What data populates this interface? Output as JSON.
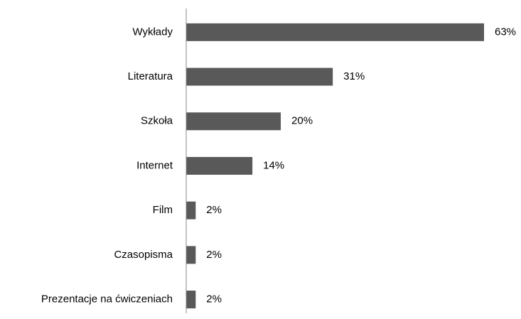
{
  "chart_data": {
    "type": "hbar",
    "categories": [
      "Wykłady",
      "Literatura",
      "Szkoła",
      "Internet",
      "Film",
      "Czasopisma",
      "Prezentacje na ćwiczeniach"
    ],
    "values": [
      63,
      31,
      20,
      14,
      2,
      2,
      2
    ],
    "value_labels": [
      "63%",
      "31%",
      "20%",
      "14%",
      "2%",
      "2%",
      "2%"
    ],
    "color": "#595959"
  }
}
